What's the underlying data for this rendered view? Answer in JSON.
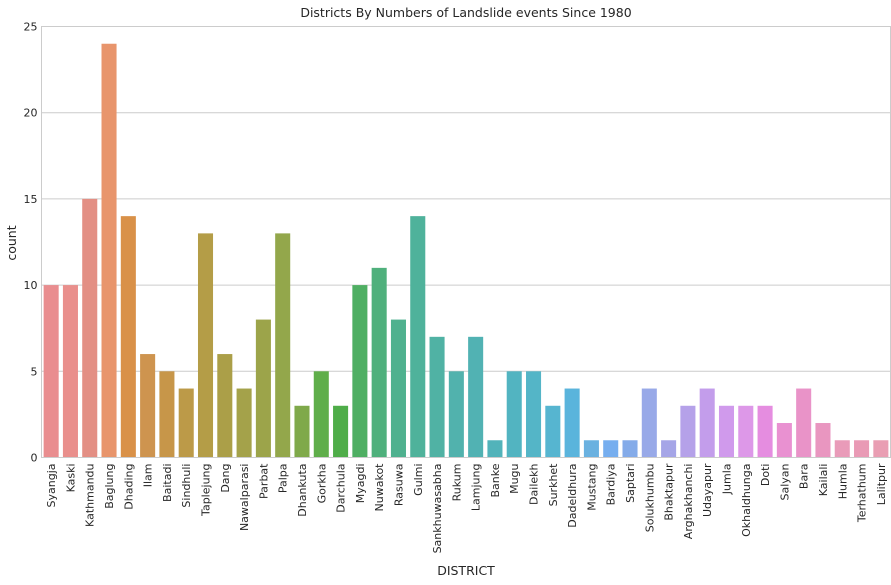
{
  "chart_data": {
    "type": "bar",
    "title": "Districts By Numbers of Landslide events Since 1980",
    "xlabel": "DISTRICT",
    "ylabel": "count",
    "ylim": [
      0,
      25
    ],
    "yticks": [
      0,
      5,
      10,
      15,
      20,
      25
    ],
    "grid": "y",
    "categories": [
      "Syangja",
      "Kaski",
      "Kathmandu",
      "Baglung",
      "Dhading",
      "Ilam",
      "Baitadi",
      "Sindhuli",
      "Taplejung",
      "Dang",
      "Nawalparasi",
      "Parbat",
      "Palpa",
      "Dhankuta",
      "Gorkha",
      "Darchula",
      "Myagdi",
      "Nuwakot",
      "Rasuwa",
      "Gulmi",
      "Sankhuwasabha",
      "Rukum",
      "Lamjung",
      "Banke",
      "Mugu",
      "Dailekh",
      "Surkhet",
      "Dadeldhura",
      "Mustang",
      "Bardiya",
      "Saptari",
      "Solukhumbu",
      "Bhaktapur",
      "Arghakhanchi",
      "Udayapur",
      "Jumla",
      "Okhaldhunga",
      "Doti",
      "Salyan",
      "Bara",
      "Kailali",
      "Humla",
      "Terhathum",
      "Lalitpur"
    ],
    "values": [
      10,
      10,
      15,
      24,
      14,
      6,
      5,
      4,
      13,
      6,
      4,
      8,
      13,
      3,
      5,
      3,
      10,
      11,
      8,
      14,
      7,
      5,
      7,
      1,
      5,
      5,
      3,
      4,
      1,
      1,
      1,
      4,
      1,
      3,
      4,
      3,
      3,
      3,
      2,
      4,
      2,
      1,
      1,
      1
    ],
    "colors": [
      "#e98d8f",
      "#e98f8c",
      "#e38f84",
      "#e8956c",
      "#d99148",
      "#ce944f",
      "#c79649",
      "#bc9a48",
      "#b49d47",
      "#ab9f48",
      "#a4a24a",
      "#9ca44a",
      "#93a74b",
      "#7fa94a",
      "#5fae4a",
      "#4fad49",
      "#4faf63",
      "#4fb07c",
      "#4fb18f",
      "#4fb29b",
      "#50b2a4",
      "#51b2ad",
      "#51b2b3",
      "#52b3ba",
      "#52b4c1",
      "#54b5c7",
      "#56b5d0",
      "#5ab4dc",
      "#6ab1e0",
      "#76aeef",
      "#84abe9",
      "#98a9e8",
      "#a5a5e7",
      "#b5a1e9",
      "#c39deb",
      "#d09aec",
      "#dd98e8",
      "#e58de0",
      "#e991d1",
      "#e993c8",
      "#e996c0",
      "#e99bb9",
      "#e99ab5",
      "#e99eb3"
    ]
  }
}
